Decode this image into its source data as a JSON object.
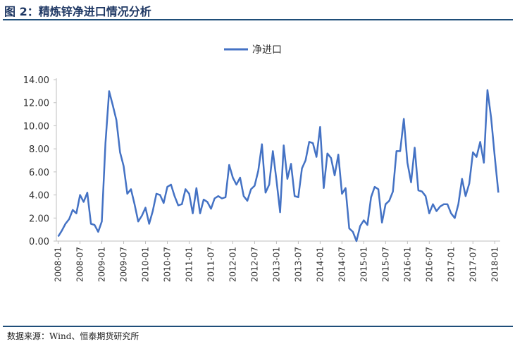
{
  "header": {
    "title": "图 2：精炼锌净进口情况分析"
  },
  "footer": {
    "source": "数据来源：Wind、恒泰期货研究所"
  },
  "chart_data": {
    "type": "line",
    "title": "",
    "legend": {
      "position": "top",
      "entries": [
        "净进口"
      ]
    },
    "series_color": "#4472c4",
    "ylim": [
      0,
      14
    ],
    "yticks": [
      "0.00",
      "2.00",
      "4.00",
      "6.00",
      "8.00",
      "10.00",
      "12.00",
      "14.00"
    ],
    "xticks": [
      "2008-01",
      "2008-07",
      "2009-01",
      "2009-07",
      "2010-01",
      "2010-07",
      "2011-01",
      "2011-07",
      "2012-01",
      "2012-07",
      "2013-01",
      "2013-07",
      "2014-01",
      "2014-07",
      "2015-01",
      "2015-07",
      "2016-01",
      "2016-07",
      "2017-01",
      "2017-07",
      "2018-01"
    ],
    "x_start": "2008-01",
    "x_end": "2018-02",
    "grid": false,
    "series": [
      {
        "name": "净进口",
        "values": [
          0.4,
          0.9,
          1.5,
          1.9,
          2.7,
          2.4,
          4.0,
          3.4,
          4.2,
          1.5,
          1.4,
          0.8,
          1.7,
          8.5,
          13.0,
          11.8,
          10.5,
          7.7,
          6.5,
          4.1,
          4.5,
          3.2,
          1.7,
          2.2,
          2.9,
          1.5,
          2.6,
          4.1,
          4.0,
          3.3,
          4.7,
          4.9,
          3.9,
          3.1,
          3.2,
          4.5,
          4.1,
          2.4,
          4.6,
          2.4,
          3.6,
          3.4,
          2.8,
          3.7,
          3.9,
          3.7,
          3.8,
          6.6,
          5.5,
          4.9,
          5.5,
          3.9,
          3.5,
          4.5,
          4.8,
          6.1,
          8.4,
          4.2,
          4.9,
          7.8,
          5.3,
          2.5,
          8.3,
          5.4,
          6.7,
          3.9,
          3.8,
          6.3,
          7.0,
          8.6,
          8.5,
          7.3,
          9.9,
          4.6,
          7.6,
          7.2,
          5.7,
          7.5,
          4.1,
          4.6,
          1.1,
          0.8,
          0.0,
          1.3,
          1.8,
          1.4,
          3.8,
          4.7,
          4.5,
          1.6,
          3.2,
          3.5,
          4.3,
          7.8,
          7.8,
          10.6,
          6.8,
          5.1,
          8.1,
          4.4,
          4.3,
          3.9,
          2.4,
          3.2,
          2.6,
          3.0,
          3.2,
          3.2,
          2.4,
          2.0,
          3.2,
          5.4,
          3.9,
          5.0,
          7.7,
          7.3,
          8.6,
          6.8,
          13.1,
          10.7,
          7.3,
          4.2
        ]
      }
    ]
  }
}
